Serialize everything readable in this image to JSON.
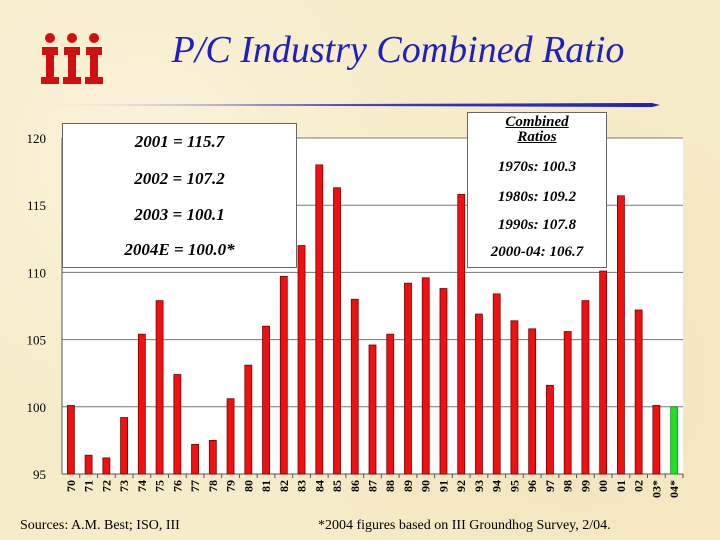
{
  "title": "P/C Industry Combined Ratio",
  "logo_text": "iii",
  "notes": [
    "2001 = 115.7",
    "2002 = 107.2",
    "2003 = 100.1",
    "2004E = 100.0*"
  ],
  "ratios_box": {
    "header_line1": "Combined",
    "header_line2": "Ratios",
    "items": [
      "1970s: 100.3",
      "1980s: 109.2",
      "1990s: 107.8",
      "2000-04: 106.7"
    ]
  },
  "footer": {
    "sources": "Sources: A.M. Best; ISO, III",
    "note": "*2004 figures based on III Groundhog Survey, 2/04."
  },
  "colors": {
    "bar": "#ee1111",
    "estimate_bar": "#22dd22",
    "title": "#2020c0",
    "logo": "#d01010"
  },
  "chart_data": {
    "type": "bar",
    "title": "P/C Industry Combined Ratio",
    "xlabel": "",
    "ylabel": "",
    "ylim": [
      95,
      120
    ],
    "yticks": [
      95,
      100,
      105,
      110,
      115,
      120
    ],
    "grid": "horizontal",
    "categories": [
      "70",
      "71",
      "72",
      "73",
      "74",
      "75",
      "76",
      "77",
      "78",
      "79",
      "80",
      "81",
      "82",
      "83",
      "84",
      "85",
      "86",
      "87",
      "88",
      "89",
      "90",
      "91",
      "92",
      "93",
      "94",
      "95",
      "96",
      "97",
      "98",
      "99",
      "00",
      "01",
      "02",
      "03*",
      "04*"
    ],
    "values": [
      100.1,
      96.4,
      96.2,
      99.2,
      105.4,
      107.9,
      102.4,
      97.2,
      97.5,
      100.6,
      103.1,
      106.0,
      109.7,
      112.0,
      118.0,
      116.3,
      108.0,
      104.6,
      105.4,
      109.2,
      109.6,
      108.8,
      115.8,
      106.9,
      108.4,
      106.4,
      105.8,
      101.6,
      105.6,
      107.9,
      110.1,
      115.7,
      107.2,
      100.1,
      100.0
    ],
    "highlight": [
      "04*"
    ]
  }
}
